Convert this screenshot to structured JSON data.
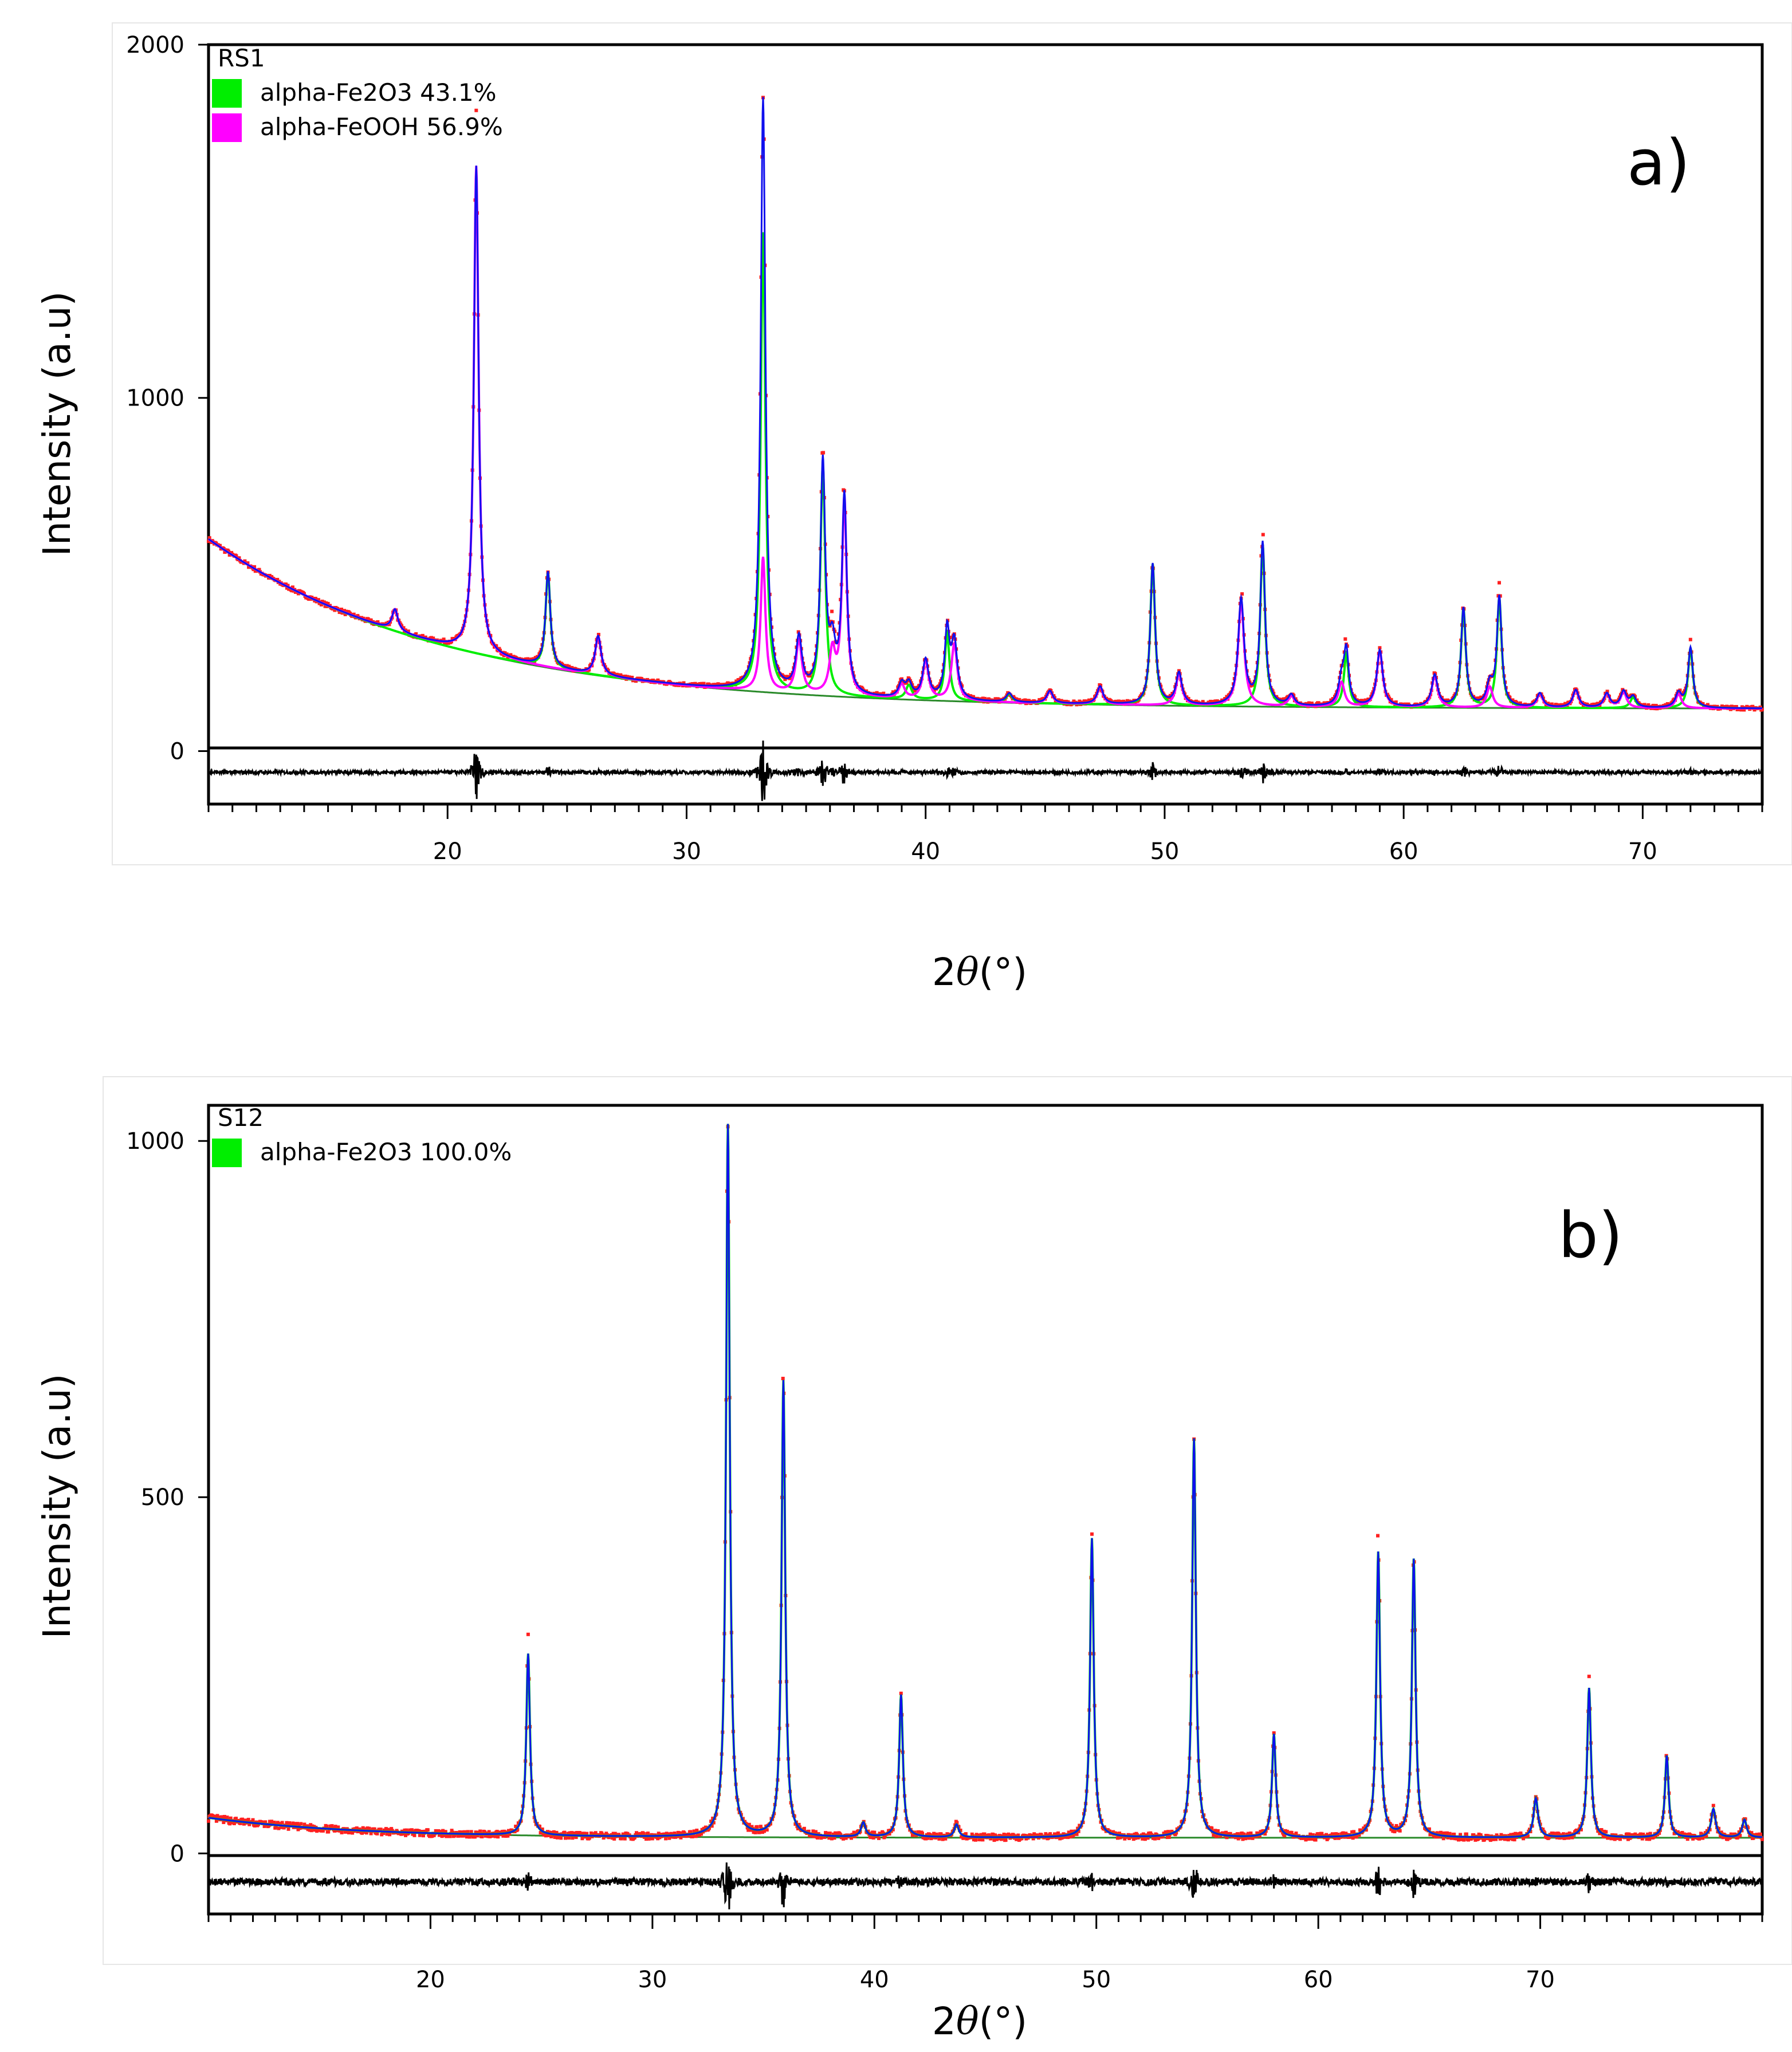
{
  "chart_data": [
    {
      "type": "line",
      "panel_label": "a)",
      "sample": "RS1",
      "legend": [
        {
          "name": "alpha-Fe2O3 43.1%",
          "color": "#00ee00"
        },
        {
          "name": "alpha-FeOOH 56.9%",
          "color": "#ff00ff"
        }
      ],
      "xlabel_prefix": "2",
      "xlabel_theta": "θ",
      "xlabel_suffix": "(°)",
      "ylabel": "Intensity (a.u)",
      "xlim": [
        10,
        75
      ],
      "ylim": [
        -150,
        2000
      ],
      "xticks": [
        20,
        30,
        40,
        50,
        60,
        70
      ],
      "yticks": [
        0,
        1000,
        2000
      ],
      "background": {
        "a": 120,
        "b": 480,
        "k": 0.1
      },
      "observed_color": "#ff2020",
      "calculated_color": "#1010ee",
      "difference_color": "#000000",
      "background_color": "#2a8a2a",
      "difference_offset": -60,
      "series": [
        {
          "name": "alpha-Fe2O3 43.1%",
          "peaks": [
            [
              24.2,
              270,
              0.12
            ],
            [
              33.2,
              1300,
              0.12
            ],
            [
              35.7,
              650,
              0.12
            ],
            [
              39.3,
              40,
              0.15
            ],
            [
              40.9,
              190,
              0.12
            ],
            [
              43.5,
              25,
              0.15
            ],
            [
              49.5,
              400,
              0.12
            ],
            [
              54.1,
              460,
              0.12
            ],
            [
              57.6,
              150,
              0.12
            ],
            [
              62.5,
              280,
              0.12
            ],
            [
              64.0,
              310,
              0.12
            ],
            [
              69.6,
              30,
              0.15
            ],
            [
              72.0,
              170,
              0.12
            ]
          ]
        },
        {
          "name": "alpha-FeOOH 56.9%",
          "peaks": [
            [
              17.8,
              60,
              0.15
            ],
            [
              21.2,
              1380,
              0.12
            ],
            [
              26.3,
              110,
              0.15
            ],
            [
              33.2,
              380,
              0.12
            ],
            [
              34.7,
              150,
              0.15
            ],
            [
              36.1,
              120,
              0.15
            ],
            [
              36.6,
              560,
              0.12
            ],
            [
              39.0,
              40,
              0.15
            ],
            [
              40.0,
              110,
              0.15
            ],
            [
              41.2,
              160,
              0.15
            ],
            [
              45.2,
              35,
              0.15
            ],
            [
              47.3,
              50,
              0.15
            ],
            [
              50.6,
              90,
              0.15
            ],
            [
              53.2,
              300,
              0.15
            ],
            [
              55.3,
              30,
              0.15
            ],
            [
              57.4,
              70,
              0.15
            ],
            [
              59.0,
              160,
              0.15
            ],
            [
              61.3,
              90,
              0.15
            ],
            [
              63.6,
              60,
              0.15
            ],
            [
              65.7,
              40,
              0.15
            ],
            [
              67.2,
              50,
              0.15
            ],
            [
              68.5,
              40,
              0.15
            ],
            [
              69.2,
              45,
              0.15
            ],
            [
              71.5,
              40,
              0.15
            ]
          ]
        }
      ]
    },
    {
      "type": "line",
      "panel_label": "b)",
      "sample": "S12",
      "legend": [
        {
          "name": "alpha-Fe2O3 100.0%",
          "color": "#00ee00"
        }
      ],
      "xlabel_prefix": "2",
      "xlabel_theta": "θ",
      "xlabel_suffix": "(°)",
      "ylabel": "Intensity (a.u)",
      "xlim": [
        10,
        80
      ],
      "ylim": [
        -85,
        1050
      ],
      "xticks": [
        20,
        30,
        40,
        50,
        60,
        70
      ],
      "yticks": [
        0,
        500,
        1000
      ],
      "background": {
        "a": 22,
        "b": 28,
        "k": 0.15
      },
      "observed_color": "#ff2020",
      "calculated_color": "#1010ee",
      "difference_color": "#000000",
      "background_color": "#2a8a2a",
      "difference_offset": -40,
      "series": [
        {
          "name": "alpha-Fe2O3 100.0%",
          "peaks": [
            [
              24.4,
              255,
              0.1
            ],
            [
              33.4,
              1000,
              0.1
            ],
            [
              35.9,
              640,
              0.1
            ],
            [
              39.5,
              20,
              0.12
            ],
            [
              41.2,
              200,
              0.1
            ],
            [
              43.7,
              18,
              0.12
            ],
            [
              49.8,
              420,
              0.1
            ],
            [
              54.4,
              560,
              0.1
            ],
            [
              58.0,
              145,
              0.1
            ],
            [
              62.7,
              400,
              0.1
            ],
            [
              64.3,
              390,
              0.1
            ],
            [
              69.8,
              55,
              0.12
            ],
            [
              72.2,
              210,
              0.1
            ],
            [
              75.7,
              115,
              0.1
            ],
            [
              77.8,
              40,
              0.12
            ],
            [
              79.2,
              25,
              0.12
            ]
          ]
        }
      ]
    }
  ]
}
